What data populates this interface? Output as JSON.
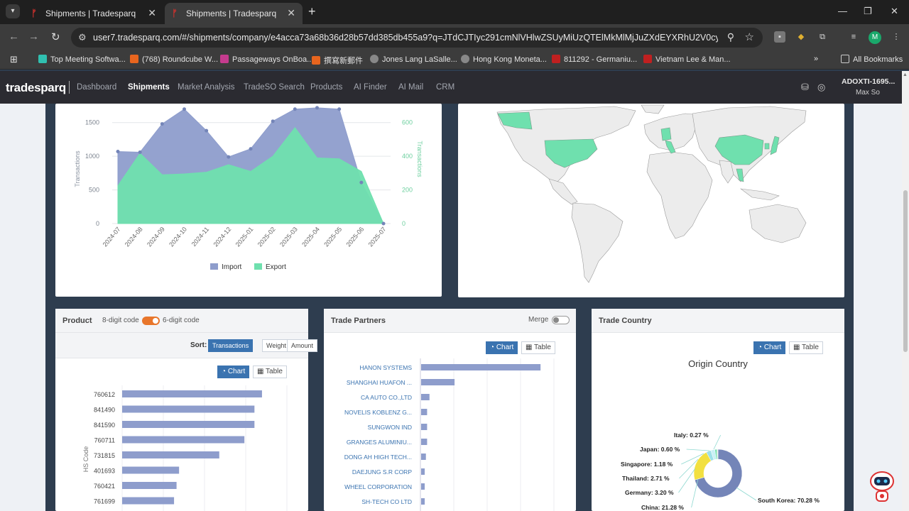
{
  "browser": {
    "tabs": [
      {
        "title": "Shipments | Tradesparq",
        "active": false
      },
      {
        "title": "Shipments | Tradesparq",
        "active": true
      }
    ],
    "url": "user7.tradesparq.com/#/shipments/company/e4acca73a68b36d28b57dd385db455a9?q=JTdCJTIyc291cmNlVHlwZSUyMiUzQTElMkMlMjJuZXdEYXRhU2V0cyUyMiUzQSUy...",
    "profile_initial": "M",
    "bookmarks": [
      "Top Meeting Softwa...",
      "(768) Roundcube W...",
      "Passageways OnBoa...",
      "撰寫新郵件",
      "Jones Lang LaSalle...",
      "Hong Kong Moneta...",
      "811292 - Germaniu...",
      "Vietnam Lee & Man..."
    ],
    "all_bookmarks": "All Bookmarks"
  },
  "app": {
    "logo": "tradesparq",
    "nav": [
      "Dashboard",
      "Shipments",
      "Market Analysis",
      "TradeSO Search",
      "Products",
      "AI Finder",
      "AI Mail",
      "CRM"
    ],
    "active_nav": "Shipments",
    "user_id": "ADOXTI-1695...",
    "user_name": "Max So"
  },
  "trend_chart": {
    "type": "area",
    "y_left_label": "Transactions",
    "y_right_label": "Transactions",
    "y_left_ticks": [
      "0",
      "500",
      "1000",
      "1500"
    ],
    "y_right_ticks": [
      "0",
      "200",
      "400",
      "600"
    ],
    "categories": [
      "2024-07",
      "2024-08",
      "2024-09",
      "2024-10",
      "2024-11",
      "2024-12",
      "2025-01",
      "2025-02",
      "2025-03",
      "2025-04",
      "2025-05",
      "2025-06",
      "2025-07"
    ],
    "series": [
      {
        "name": "Import",
        "axis": "left",
        "color": "#8e9dcc",
        "values": [
          1070,
          1060,
          1480,
          1700,
          1380,
          990,
          1110,
          1520,
          1700,
          1720,
          1700,
          610,
          0
        ]
      },
      {
        "name": "Export",
        "axis": "right",
        "color": "#6fe0ae",
        "values": [
          225,
          418,
          290,
          295,
          305,
          350,
          310,
          400,
          570,
          390,
          385,
          310,
          0
        ]
      }
    ],
    "ylim_left": [
      0,
      1750
    ],
    "ylim_right": [
      0,
      700
    ]
  },
  "product_panel": {
    "title": "Product",
    "code8": "8-digit code",
    "code6": "6-digit code",
    "sort_label": "Sort:",
    "sort_options": [
      "Transactions",
      "Weight",
      "Amount"
    ],
    "active_sort": "Transactions",
    "view_chart": "Chart",
    "view_table": "Table",
    "axis_label": "HS Code",
    "chart_data": {
      "type": "bar",
      "categories": [
        "760612",
        "841490",
        "841590",
        "760711",
        "731815",
        "401693",
        "760421",
        "761699"
      ],
      "values": [
        100,
        94,
        94,
        86,
        66,
        34,
        32,
        30
      ],
      "xlim": [
        0,
        130
      ]
    }
  },
  "partners_panel": {
    "title": "Trade Partners",
    "merge_label": "Merge",
    "view_chart": "Chart",
    "view_table": "Table",
    "chart_data": {
      "type": "bar",
      "categories": [
        "HANON SYSTEMS",
        "SHANGHAI HUAFON ...",
        "CA AUTO CO.,LTD",
        "NOVELIS KOBLENZ G...",
        "SUNGWON IND",
        "GRANGES ALUMINIU...",
        "DONG AH HIGH TECH...",
        "DAEJUNG S.R CORP",
        "WHEEL CORPORATION",
        "SH-TECH CO LTD"
      ],
      "values": [
        100,
        28,
        7,
        5,
        5,
        5,
        4,
        3,
        3,
        3
      ],
      "xlim": [
        0,
        113
      ]
    }
  },
  "country_panel": {
    "title": "Trade Country",
    "view_chart": "Chart",
    "view_table": "Table",
    "chart_title": "Origin Country",
    "chart_data": {
      "type": "pie",
      "labels": [
        "South Korea",
        "China",
        "Germany",
        "Thailand",
        "Singapore",
        "Japan",
        "Italy"
      ],
      "values": [
        70.28,
        21.28,
        3.2,
        2.71,
        1.18,
        0.6,
        0.27
      ],
      "display": [
        "South Korea: 70.28 %",
        "China: 21.28 %",
        "Germany: 3.20 %",
        "Thailand: 2.71 %",
        "Singapore: 1.18 %",
        "Japan: 0.60 %",
        "Italy: 0.27 %"
      ],
      "colors": [
        "#7485b8",
        "#f2e040",
        "#9ee0e8",
        "#c9f0f5",
        "#6fe0ae",
        "#8ed8a0",
        "#b9c5e4"
      ]
    }
  },
  "map": {
    "highlight_color": "#6fe0ae",
    "highlighted": [
      "United States",
      "Germany",
      "Italy",
      "China",
      "Thailand",
      "Japan",
      "South Korea",
      "Singapore"
    ]
  }
}
